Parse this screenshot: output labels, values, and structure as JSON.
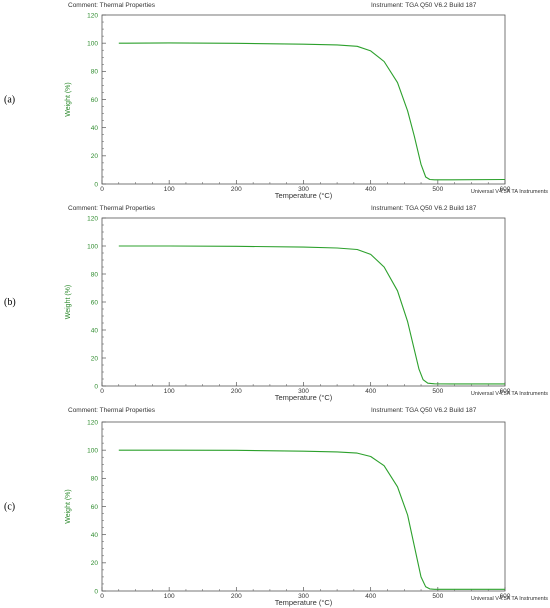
{
  "panels": [
    {
      "panel_label": "(a)",
      "comment": "Comment: Thermal Properties",
      "instrument": "Instrument: TGA Q50 V6.2 Build 187",
      "footer": "Universal V4.5A TA Instruments"
    },
    {
      "panel_label": "(b)",
      "comment": "Comment: Thermal Properties",
      "instrument": "Instrument: TGA Q50 V6.2 Build 187",
      "footer": "Universal V4.5A TA Instruments"
    },
    {
      "panel_label": "(c)",
      "comment": "Comment: Thermal Properties",
      "instrument": "Instrument: TGA Q50 V6.2 Build 187",
      "footer": "Universal V4.5A TA Instruments"
    }
  ],
  "colors": {
    "curve": "#2ca02c",
    "axis": "#555555",
    "ylabel": "#2e8b2e"
  },
  "chart_data": [
    {
      "type": "line",
      "xlabel": "Temperature (°C)",
      "ylabel": "Weight (%)",
      "xlim": [
        0,
        600
      ],
      "ylim": [
        0,
        120
      ],
      "xticks": [
        0,
        100,
        200,
        300,
        400,
        500,
        600
      ],
      "yticks": [
        0,
        20,
        40,
        60,
        80,
        100,
        120
      ],
      "grid": false,
      "series": [
        {
          "x": [
            25,
            100,
            200,
            300,
            350,
            380,
            400,
            420,
            440,
            455,
            465,
            475,
            482,
            488,
            495,
            520,
            600
          ],
          "y": [
            100,
            100.2,
            99.9,
            99.3,
            98.8,
            97.8,
            94.5,
            87,
            72,
            52,
            34,
            14,
            5,
            3.2,
            3,
            3,
            3.2
          ]
        }
      ]
    },
    {
      "type": "line",
      "xlabel": "Temperature (°C)",
      "ylabel": "Weight (%)",
      "xlim": [
        0,
        600
      ],
      "ylim": [
        0,
        120
      ],
      "xticks": [
        0,
        100,
        200,
        300,
        400,
        500,
        600
      ],
      "yticks": [
        0,
        20,
        40,
        60,
        80,
        100,
        120
      ],
      "grid": false,
      "series": [
        {
          "x": [
            25,
            100,
            200,
            300,
            350,
            380,
            400,
            420,
            440,
            455,
            465,
            472,
            478,
            485,
            495,
            520,
            600
          ],
          "y": [
            100,
            100,
            99.8,
            99.2,
            98.6,
            97.5,
            94,
            85,
            68,
            46,
            26,
            12,
            4.5,
            2,
            1.6,
            1.5,
            1.5
          ]
        }
      ]
    },
    {
      "type": "line",
      "xlabel": "Temperature (°C)",
      "ylabel": "Weight (%)",
      "xlim": [
        0,
        600
      ],
      "ylim": [
        0,
        120
      ],
      "xticks": [
        0,
        100,
        200,
        300,
        400,
        500,
        600
      ],
      "yticks": [
        0,
        20,
        40,
        60,
        80,
        100,
        120
      ],
      "grid": false,
      "series": [
        {
          "x": [
            25,
            100,
            200,
            300,
            350,
            380,
            400,
            420,
            440,
            455,
            465,
            475,
            482,
            488,
            495,
            520,
            600
          ],
          "y": [
            100,
            100,
            99.9,
            99.3,
            98.8,
            97.9,
            95.5,
            89,
            74,
            54,
            32,
            10,
            3,
            1.5,
            1.2,
            1.2,
            1.2
          ]
        }
      ]
    }
  ]
}
